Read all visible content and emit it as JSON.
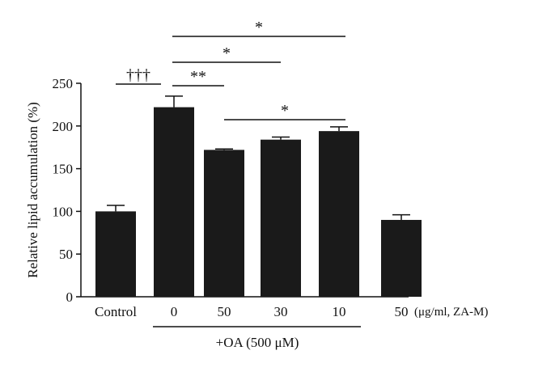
{
  "chart_data": {
    "type": "bar",
    "ylabel": "Relative lipid accumulation (%)",
    "ylim": [
      0,
      250
    ],
    "yticks": [
      0,
      50,
      100,
      150,
      200,
      250
    ],
    "categories": [
      "Control",
      "0",
      "50",
      "30",
      "10",
      "50"
    ],
    "values": [
      100,
      222,
      172,
      184,
      194,
      90
    ],
    "errors": [
      7,
      13,
      1,
      3,
      5,
      6
    ],
    "unit_label": "(μg/ml, ZA-M)",
    "group_label": "+OA (500 μM)",
    "group_span": [
      1,
      4
    ],
    "bar_color": "#1a1a1a",
    "significance": [
      {
        "from": 0,
        "to": 1,
        "label": "†††"
      },
      {
        "from": 1,
        "to": 2,
        "label": "**"
      },
      {
        "from": 1,
        "to": 3,
        "label": "*"
      },
      {
        "from": 1,
        "to": 4,
        "label": "*"
      },
      {
        "from": 2,
        "to": 4,
        "label": "*"
      }
    ]
  }
}
